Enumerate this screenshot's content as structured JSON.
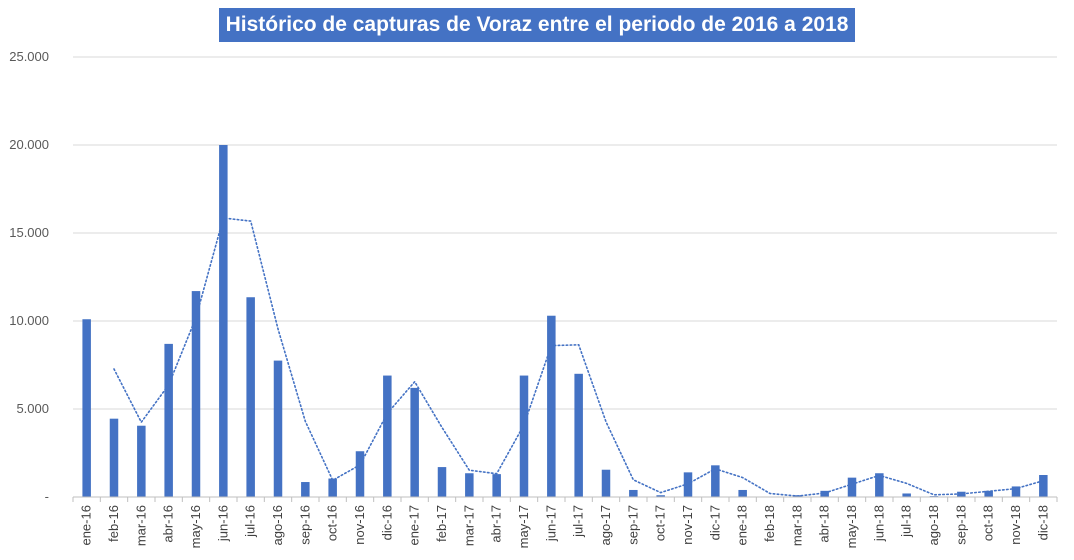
{
  "chart_data": {
    "type": "bar",
    "title": "Histórico de capturas de Voraz entre el periodo de 2016 a 2018",
    "xlabel": "",
    "ylabel": "",
    "ylim": [
      0,
      25000
    ],
    "yticks": [
      0,
      5000,
      10000,
      15000,
      20000,
      25000
    ],
    "ytick_labels": [
      "-",
      "5.000",
      "10.000",
      "15.000",
      "20.000",
      "25.000"
    ],
    "grid": true,
    "bar_color": "#4472c4",
    "trendline": {
      "type": "moving-average",
      "period": 2,
      "color": "#4472c4",
      "style": "dotted"
    },
    "categories": [
      "ene-16",
      "feb-16",
      "mar-16",
      "abr-16",
      "may-16",
      "jun-16",
      "jul-16",
      "ago-16",
      "sep-16",
      "oct-16",
      "nov-16",
      "dic-16",
      "ene-17",
      "feb-17",
      "mar-17",
      "abr-17",
      "may-17",
      "jun-17",
      "jul-17",
      "ago-17",
      "sep-17",
      "oct-17",
      "nov-17",
      "dic-17",
      "ene-18",
      "feb-18",
      "mar-18",
      "abr-18",
      "may-18",
      "jun-18",
      "jul-18",
      "ago-18",
      "sep-18",
      "oct-18",
      "nov-18",
      "dic-18"
    ],
    "values": [
      10100,
      4450,
      4050,
      8700,
      11700,
      20000,
      11350,
      7750,
      850,
      1050,
      2600,
      6900,
      6200,
      1700,
      1350,
      1300,
      6900,
      10300,
      7000,
      1550,
      400,
      100,
      1400,
      1800,
      400,
      0,
      100,
      350,
      1100,
      1350,
      200,
      50,
      300,
      350,
      600,
      1250
    ]
  }
}
